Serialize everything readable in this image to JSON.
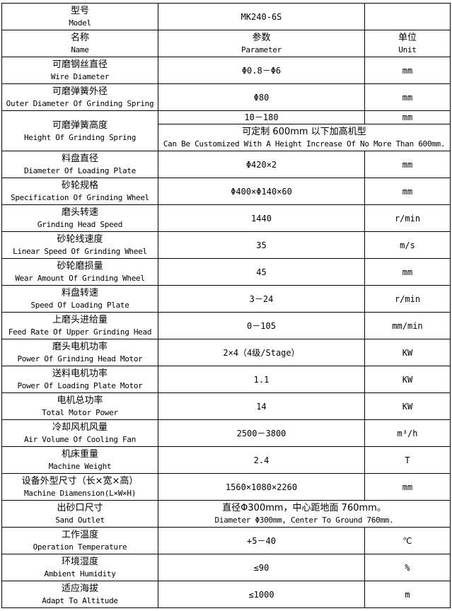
{
  "table": {
    "title_semantic": "Machine specification table",
    "columns": {
      "name_zh": "名称",
      "name_en": "Name",
      "param_zh": "参数",
      "param_en": "Parameter",
      "unit_zh": "单位",
      "unit_en": "Unit"
    },
    "rows": [
      {
        "zh": "型号",
        "en": "Model",
        "value": "MK240-6S",
        "unit": ""
      },
      {
        "zh": "名称",
        "en": "Name",
        "value_zh": "参数",
        "value_en": "Parameter",
        "unit_zh": "单位",
        "unit_en": "Unit"
      },
      {
        "zh": "可磨钢丝直径",
        "en": "Wire Diameter",
        "value": "Φ0.8－Φ6",
        "unit": "mm"
      },
      {
        "zh": "可磨弹簧外径",
        "en": "Outer Diameter Of Grinding Spring",
        "value": "Φ80",
        "unit": "mm"
      },
      {
        "zh": "可磨弹簧高度",
        "en": "Height Of Grinding Spring",
        "value": "10－180",
        "unit": "mm",
        "note_zh": "可定制 600mm 以下加高机型",
        "note_en": "Can Be Customized With A Height Increase Of No More Than 600mm."
      },
      {
        "zh": "料盘直径",
        "en": "Diameter Of Loading Plate",
        "value": "Φ420×2",
        "unit": "mm"
      },
      {
        "zh": "砂轮规格",
        "en": "Specification Of Grinding Wheel",
        "value": "Φ400×Φ140×60",
        "unit": "mm"
      },
      {
        "zh": "磨头转速",
        "en": "Grinding Head Speed",
        "value": "1440",
        "unit": "r/min"
      },
      {
        "zh": "砂轮线速度",
        "en": "Linear Speed Of Grinding Wheel",
        "value": "35",
        "unit": "m/s"
      },
      {
        "zh": "砂轮磨损量",
        "en": "Wear Amount Of Grinding Wheel",
        "value": "45",
        "unit": "mm"
      },
      {
        "zh": "料盘转速",
        "en": "Speed Of Loading Plate",
        "value": "3－24",
        "unit": "r/min"
      },
      {
        "zh": "上磨头进给量",
        "en": "Feed Rate Of Upper Grinding Head",
        "value": "0－105",
        "unit": "mm/min"
      },
      {
        "zh": "磨头电机功率",
        "en": "Power Of Grinding Head Motor",
        "value": "2×4（4级/Stage）",
        "unit": "KW"
      },
      {
        "zh": "送料电机功率",
        "en": "Power Of Loading Plate Motor",
        "value": "1.1",
        "unit": "KW"
      },
      {
        "zh": "电机总功率",
        "en": "Total Motor Power",
        "value": "14",
        "unit": "KW"
      },
      {
        "zh": "冷却风机风量",
        "en": "Air Volume Of Cooling Fan",
        "value": "2500－3800",
        "unit": "m³/h"
      },
      {
        "zh": "机床重量",
        "en": "Machine Weight",
        "value": "2.4",
        "unit": "T"
      },
      {
        "zh": "设备外型尺寸（长×宽×高）",
        "en": "Machine Diamension(L×W×H)",
        "value": "1560×1080×2260",
        "unit": "mm"
      },
      {
        "zh": "出砂口尺寸",
        "en": "Sand Outlet",
        "value_zh": "直径Φ300mm，中心距地面 760mm。",
        "value_en": "Diameter Φ300mm, Center To Ground 760mm."
      },
      {
        "zh": "工作温度",
        "en": "Operation Temperature",
        "value": "+5－40",
        "unit": "℃"
      },
      {
        "zh": "环境湿度",
        "en": "Ambient Humidity",
        "value": "≤90",
        "unit": "%"
      },
      {
        "zh": "适应海拔",
        "en": "Adapt To Altitude",
        "value": "≤1000",
        "unit": "m"
      }
    ]
  }
}
